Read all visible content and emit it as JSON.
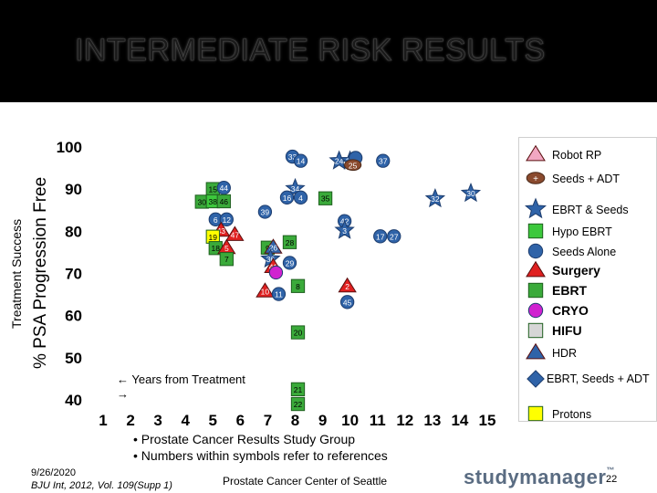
{
  "slide": {
    "title": "INTERMEDIATE RISK RESULTS",
    "y_label_outer": "Treatment Success",
    "y_label_inner": "% PSA Progression Free",
    "years_note": "← Years from Treatment",
    "years_note_arrow": "→",
    "bullets": [
      "• Prostate Cancer Results Study Group",
      "• Numbers within symbols refer to references"
    ],
    "date": "9/26/2020",
    "citation": "BJU Int, 2012, Vol. 109(Supp 1)",
    "center_footer": "Prostate Cancer Center of Seattle",
    "logo_main": "studymanager",
    "logo_tm": "™",
    "page_number": "22"
  },
  "legend": [
    {
      "label": "Robot RP",
      "shape": "triangle",
      "color": "#f2a7c2"
    },
    {
      "label": "Seeds + ADT",
      "shape": "ellipse",
      "color": "#8a4a2e",
      "mark": "+"
    },
    {
      "label": "EBRT & Seeds",
      "shape": "star",
      "color": "#2f63a8"
    },
    {
      "label": "Hypo EBRT",
      "shape": "square",
      "color": "#3cc83c"
    },
    {
      "label": "Seeds Alone",
      "shape": "circle",
      "color": "#2f63a8"
    },
    {
      "label": "Surgery",
      "shape": "triangle",
      "color": "#e02020"
    },
    {
      "label": "EBRT",
      "shape": "square",
      "color": "#3aaa3a"
    },
    {
      "label": "CRYO",
      "shape": "circle",
      "color": "#d022d0"
    },
    {
      "label": "HIFU",
      "shape": "square",
      "color": "#d6d6d6"
    },
    {
      "label": "HDR",
      "shape": "triangle",
      "color": "#2f63a8"
    },
    {
      "label": "EBRT, Seeds + ADT",
      "shape": "diamond",
      "color": "#2f63a8"
    },
    {
      "label": "Protons",
      "shape": "square",
      "color": "#ffff00"
    }
  ],
  "chart_data": {
    "type": "scatter",
    "title": "INTERMEDIATE RISK RESULTS",
    "xlabel": "Years from Treatment",
    "ylabel": "% PSA Progression Free",
    "x_ticks": [
      "1",
      "2",
      "3",
      "4",
      "5",
      "6",
      "7",
      "8",
      "9",
      "10",
      "11",
      "12",
      "13",
      "14",
      "15"
    ],
    "y_ticks": [
      "40",
      "50",
      "60",
      "70",
      "80",
      "90",
      "100"
    ],
    "xlim": [
      1,
      15
    ],
    "ylim": [
      40,
      100
    ],
    "points": [
      {
        "x": 7.9,
        "y": 97.5,
        "label": "33",
        "type": "Seeds Alone",
        "color": "#2f63a8"
      },
      {
        "x": 8.2,
        "y": 96.5,
        "label": "14",
        "type": "Seeds Alone",
        "color": "#2f63a8"
      },
      {
        "x": 9.6,
        "y": 96.5,
        "label": "24",
        "type": "EBRT & Seeds",
        "color": "#2f63a8"
      },
      {
        "x": 10.0,
        "y": 96.5,
        "label": "23",
        "type": "EBRT & Seeds",
        "color": "#2f63a8"
      },
      {
        "x": 10.2,
        "y": 97.2,
        "label": "",
        "type": "Seeds Alone",
        "color": "#2f63a8"
      },
      {
        "x": 10.1,
        "y": 95.5,
        "label": "25",
        "type": "Seeds + ADT",
        "color": "#8a4a2e"
      },
      {
        "x": 11.2,
        "y": 96.5,
        "label": "37",
        "type": "Seeds Alone",
        "color": "#2f63a8"
      },
      {
        "x": 5.0,
        "y": 89.8,
        "label": "15",
        "type": "EBRT",
        "color": "#3aaa3a"
      },
      {
        "x": 5.4,
        "y": 90.1,
        "label": "44",
        "type": "Seeds Alone",
        "color": "#2f63a8"
      },
      {
        "x": 8.0,
        "y": 89.9,
        "label": "34",
        "type": "EBRT & Seeds",
        "color": "#2f63a8"
      },
      {
        "x": 7.7,
        "y": 87.8,
        "label": "16",
        "type": "Seeds Alone",
        "color": "#2f63a8"
      },
      {
        "x": 8.2,
        "y": 87.8,
        "label": "4",
        "type": "Seeds Alone",
        "color": "#2f63a8"
      },
      {
        "x": 9.1,
        "y": 87.6,
        "label": "35",
        "type": "EBRT",
        "color": "#3aaa3a"
      },
      {
        "x": 13.1,
        "y": 87.5,
        "label": "32",
        "type": "EBRT & Seeds",
        "color": "#2f63a8"
      },
      {
        "x": 14.4,
        "y": 88.8,
        "label": "30",
        "type": "EBRT & Seeds",
        "color": "#2f63a8"
      },
      {
        "x": 4.6,
        "y": 86.8,
        "label": "30",
        "type": "EBRT",
        "color": "#3aaa3a"
      },
      {
        "x": 5.0,
        "y": 86.9,
        "label": "38",
        "type": "Hypo EBRT",
        "color": "#3cc83c"
      },
      {
        "x": 5.4,
        "y": 86.9,
        "label": "46",
        "type": "EBRT",
        "color": "#3aaa3a"
      },
      {
        "x": 6.9,
        "y": 84.4,
        "label": "39",
        "type": "Seeds Alone",
        "color": "#2f63a8"
      },
      {
        "x": 5.1,
        "y": 82.6,
        "label": "6",
        "type": "Seeds Alone",
        "color": "#2f63a8"
      },
      {
        "x": 5.5,
        "y": 82.6,
        "label": "12",
        "type": "Seeds Alone",
        "color": "#2f63a8"
      },
      {
        "x": 9.8,
        "y": 82.2,
        "label": "42",
        "type": "Seeds Alone",
        "color": "#2f63a8"
      },
      {
        "x": 9.8,
        "y": 80.0,
        "label": "3",
        "type": "EBRT & Seeds",
        "color": "#2f63a8"
      },
      {
        "x": 5.3,
        "y": 80.0,
        "label": "43",
        "type": "Surgery",
        "color": "#e02020"
      },
      {
        "x": 5.0,
        "y": 78.5,
        "label": "19",
        "type": "Protons",
        "color": "#ffff00"
      },
      {
        "x": 5.8,
        "y": 79.0,
        "label": "47",
        "type": "Surgery",
        "color": "#e02020"
      },
      {
        "x": 11.1,
        "y": 78.6,
        "label": "17",
        "type": "Seeds Alone",
        "color": "#2f63a8"
      },
      {
        "x": 11.6,
        "y": 78.6,
        "label": "27",
        "type": "Seeds Alone",
        "color": "#2f63a8"
      },
      {
        "x": 7.8,
        "y": 77.2,
        "label": "28",
        "type": "EBRT",
        "color": "#3aaa3a"
      },
      {
        "x": 5.1,
        "y": 75.8,
        "label": "18",
        "type": "EBRT",
        "color": "#3aaa3a"
      },
      {
        "x": 5.5,
        "y": 75.9,
        "label": "5",
        "type": "Surgery",
        "color": "#e02020"
      },
      {
        "x": 7.0,
        "y": 75.9,
        "label": "9",
        "type": "EBRT",
        "color": "#3aaa3a"
      },
      {
        "x": 7.2,
        "y": 76.0,
        "label": "26",
        "type": "HDR",
        "color": "#2f63a8"
      },
      {
        "x": 5.5,
        "y": 73.2,
        "label": "7",
        "type": "EBRT",
        "color": "#3aaa3a"
      },
      {
        "x": 7.1,
        "y": 73.2,
        "label": "36",
        "type": "EBRT & Seeds",
        "color": "#2f63a8"
      },
      {
        "x": 7.8,
        "y": 72.3,
        "label": "29",
        "type": "Seeds Alone",
        "color": "#2f63a8"
      },
      {
        "x": 7.2,
        "y": 71.4,
        "label": "41",
        "type": "Surgery",
        "color": "#e02020"
      },
      {
        "x": 7.3,
        "y": 70.0,
        "label": "",
        "type": "CRYO",
        "color": "#d022d0"
      },
      {
        "x": 8.1,
        "y": 66.8,
        "label": "8",
        "type": "EBRT",
        "color": "#3aaa3a"
      },
      {
        "x": 9.9,
        "y": 66.8,
        "label": "2",
        "type": "Surgery",
        "color": "#e02020"
      },
      {
        "x": 6.9,
        "y": 65.6,
        "label": "10",
        "type": "Surgery",
        "color": "#e02020"
      },
      {
        "x": 7.4,
        "y": 64.9,
        "label": "11",
        "type": "Seeds Alone",
        "color": "#2f63a8"
      },
      {
        "x": 9.9,
        "y": 63.0,
        "label": "45",
        "type": "Seeds Alone",
        "color": "#2f63a8"
      },
      {
        "x": 8.1,
        "y": 55.8,
        "label": "20",
        "type": "EBRT",
        "color": "#3aaa3a"
      },
      {
        "x": 8.1,
        "y": 42.3,
        "label": "21",
        "type": "EBRT",
        "color": "#3aaa3a"
      },
      {
        "x": 8.1,
        "y": 38.8,
        "label": "22",
        "type": "EBRT",
        "color": "#3aaa3a"
      }
    ]
  }
}
